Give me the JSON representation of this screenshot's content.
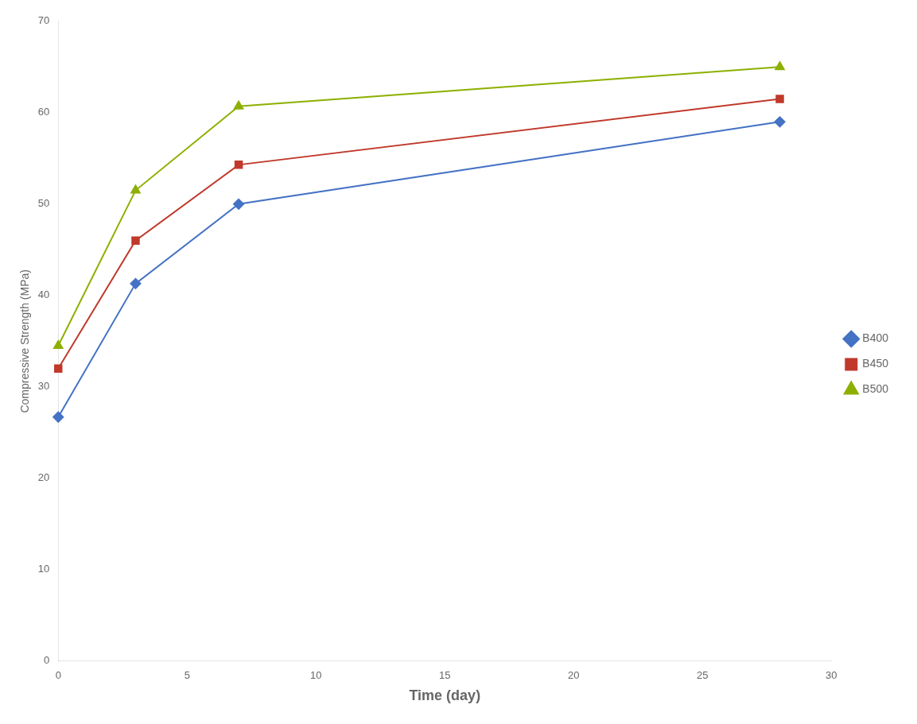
{
  "chart_data": {
    "type": "line",
    "x": [
      0,
      3,
      7,
      28
    ],
    "series": [
      {
        "name": "B400",
        "color": "#4472C4",
        "marker": "diamond",
        "values": [
          26.7,
          41.3,
          50.0,
          59.0
        ]
      },
      {
        "name": "B450",
        "color": "#C0392B",
        "marker": "square",
        "values": [
          32.0,
          46.0,
          54.3,
          61.5
        ]
      },
      {
        "name": "B500",
        "color": "#8DB000",
        "marker": "triangle",
        "values": [
          34.5,
          51.5,
          60.7,
          65.0
        ]
      }
    ],
    "xlabel": "Time (day)",
    "ylabel": "Compressive Strength (MPa)",
    "xlim": [
      0,
      30
    ],
    "ylim": [
      0,
      70
    ],
    "xticks": [
      0,
      5,
      10,
      15,
      20,
      25,
      30
    ],
    "yticks": [
      0,
      10,
      20,
      30,
      40,
      50,
      60,
      70
    ],
    "grid": false,
    "legend": "right"
  }
}
